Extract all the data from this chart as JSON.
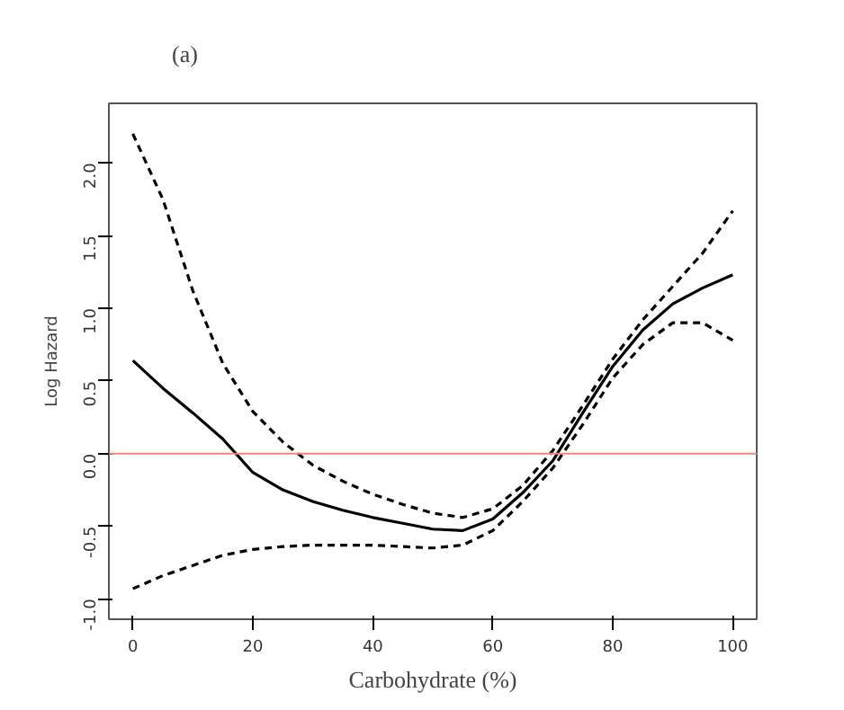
{
  "chart_data": {
    "type": "line",
    "title": "(a)",
    "xlabel": "Carbohydrate (%)",
    "ylabel": "Log Hazard",
    "x": [
      0,
      5,
      10,
      15,
      20,
      25,
      30,
      35,
      40,
      45,
      50,
      55,
      60,
      65,
      70,
      75,
      80,
      85,
      90,
      95,
      100
    ],
    "series": [
      {
        "color": "#000000",
        "line_style": "solid",
        "values": [
          0.64,
          0.45,
          0.28,
          0.1,
          -0.13,
          -0.25,
          -0.33,
          -0.39,
          -0.44,
          -0.48,
          -0.52,
          -0.53,
          -0.45,
          -0.27,
          -0.05,
          0.28,
          0.6,
          0.85,
          1.03,
          1.14,
          1.23
        ]
      },
      {
        "color": "#000000",
        "line_style": "dashed",
        "values": [
          2.2,
          1.75,
          1.12,
          0.62,
          0.29,
          0.08,
          -0.08,
          -0.19,
          -0.28,
          -0.35,
          -0.41,
          -0.44,
          -0.38,
          -0.22,
          0.02,
          0.33,
          0.65,
          0.92,
          1.15,
          1.38,
          1.67
        ]
      },
      {
        "color": "#000000",
        "line_style": "dashed",
        "values": [
          -0.93,
          -0.84,
          -0.77,
          -0.7,
          -0.66,
          -0.64,
          -0.63,
          -0.63,
          -0.63,
          -0.64,
          -0.65,
          -0.63,
          -0.53,
          -0.33,
          -0.1,
          0.2,
          0.52,
          0.75,
          0.9,
          0.9,
          0.78
        ]
      }
    ],
    "xlim": [
      -4,
      104
    ],
    "ylim": [
      -1.14,
      2.41
    ],
    "xticks": [
      0,
      20,
      40,
      60,
      80,
      100
    ],
    "yticks": [
      {
        "value": -1,
        "label": "-1.0"
      },
      {
        "value": -0.5,
        "label": "-0.5"
      },
      {
        "value": 0,
        "label": "0.0"
      },
      {
        "value": 0.5,
        "label": "0.5"
      },
      {
        "value": 1,
        "label": "1.0"
      },
      {
        "value": 1.5,
        "label": "1.5"
      },
      {
        "value": 2,
        "label": "2.0"
      }
    ],
    "ref_lines": [
      {
        "axis": "y",
        "value": 0,
        "color": "#f08878"
      }
    ]
  }
}
